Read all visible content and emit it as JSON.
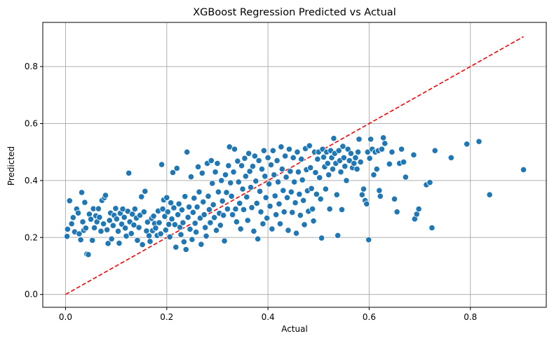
{
  "chart_data": {
    "type": "scatter",
    "title": "XGBoost Regression Predicted vs Actual",
    "xlabel": "Actual",
    "ylabel": "Predicted",
    "xlim": [
      -0.045,
      0.95
    ],
    "ylim": [
      -0.045,
      0.955
    ],
    "xticks": [
      0.0,
      0.2,
      0.4,
      0.6,
      0.8
    ],
    "yticks": [
      0.0,
      0.2,
      0.4,
      0.6,
      0.8
    ],
    "xtick_labels": [
      "0.0",
      "0.2",
      "0.4",
      "0.6",
      "0.8"
    ],
    "ytick_labels": [
      "0.0",
      "0.2",
      "0.4",
      "0.6",
      "0.8"
    ],
    "grid": true,
    "point_color": "#1f77b4",
    "point_edge_color": "#ffffff",
    "reference_line": {
      "style": "dashed",
      "color": "#ff0000",
      "from": [
        0.0,
        0.0
      ],
      "to": [
        0.905,
        0.905
      ]
    },
    "points": [
      [
        0.003,
        0.204
      ],
      [
        0.004,
        0.229
      ],
      [
        0.008,
        0.329
      ],
      [
        0.012,
        0.248
      ],
      [
        0.015,
        0.27
      ],
      [
        0.018,
        0.22
      ],
      [
        0.022,
        0.3
      ],
      [
        0.025,
        0.286
      ],
      [
        0.027,
        0.213
      ],
      [
        0.03,
        0.192
      ],
      [
        0.032,
        0.358
      ],
      [
        0.034,
        0.255
      ],
      [
        0.036,
        0.225
      ],
      [
        0.038,
        0.323
      ],
      [
        0.04,
        0.233
      ],
      [
        0.042,
        0.142
      ],
      [
        0.045,
        0.14
      ],
      [
        0.047,
        0.282
      ],
      [
        0.05,
        0.264
      ],
      [
        0.053,
        0.19
      ],
      [
        0.055,
        0.301
      ],
      [
        0.057,
        0.234
      ],
      [
        0.06,
        0.276
      ],
      [
        0.062,
        0.255
      ],
      [
        0.065,
        0.301
      ],
      [
        0.067,
        0.271
      ],
      [
        0.07,
        0.222
      ],
      [
        0.072,
        0.33
      ],
      [
        0.075,
        0.248
      ],
      [
        0.077,
        0.34
      ],
      [
        0.079,
        0.348
      ],
      [
        0.082,
        0.227
      ],
      [
        0.084,
        0.179
      ],
      [
        0.087,
        0.26
      ],
      [
        0.089,
        0.286
      ],
      [
        0.091,
        0.195
      ],
      [
        0.094,
        0.242
      ],
      [
        0.096,
        0.278
      ],
      [
        0.099,
        0.302
      ],
      [
        0.101,
        0.265
      ],
      [
        0.104,
        0.222
      ],
      [
        0.106,
        0.18
      ],
      [
        0.108,
        0.285
      ],
      [
        0.111,
        0.247
      ],
      [
        0.113,
        0.3
      ],
      [
        0.116,
        0.271
      ],
      [
        0.118,
        0.233
      ],
      [
        0.12,
        0.205
      ],
      [
        0.123,
        0.292
      ],
      [
        0.125,
        0.426
      ],
      [
        0.127,
        0.255
      ],
      [
        0.13,
        0.214
      ],
      [
        0.132,
        0.282
      ],
      [
        0.135,
        0.244
      ],
      [
        0.137,
        0.3
      ],
      [
        0.14,
        0.268
      ],
      [
        0.142,
        0.19
      ],
      [
        0.145,
        0.235
      ],
      [
        0.147,
        0.278
      ],
      [
        0.15,
        0.343
      ],
      [
        0.152,
        0.175
      ],
      [
        0.155,
        0.29
      ],
      [
        0.157,
        0.362
      ],
      [
        0.16,
        0.223
      ],
      [
        0.162,
        0.254
      ],
      [
        0.165,
        0.206
      ],
      [
        0.167,
        0.186
      ],
      [
        0.17,
        0.267
      ],
      [
        0.172,
        0.224
      ],
      [
        0.174,
        0.275
      ],
      [
        0.176,
        0.249
      ],
      [
        0.178,
        0.233
      ],
      [
        0.181,
        0.207
      ],
      [
        0.183,
        0.293
      ],
      [
        0.185,
        0.252
      ],
      [
        0.188,
        0.213
      ],
      [
        0.19,
        0.456
      ],
      [
        0.192,
        0.3
      ],
      [
        0.194,
        0.332
      ],
      [
        0.196,
        0.274
      ],
      [
        0.198,
        0.226
      ],
      [
        0.2,
        0.34
      ],
      [
        0.202,
        0.29
      ],
      [
        0.204,
        0.246
      ],
      [
        0.206,
        0.202
      ],
      [
        0.208,
        0.322
      ],
      [
        0.21,
        0.265
      ],
      [
        0.212,
        0.428
      ],
      [
        0.214,
        0.304
      ],
      [
        0.216,
        0.245
      ],
      [
        0.218,
        0.166
      ],
      [
        0.22,
        0.443
      ],
      [
        0.222,
        0.28
      ],
      [
        0.224,
        0.318
      ],
      [
        0.226,
        0.236
      ],
      [
        0.228,
        0.21
      ],
      [
        0.23,
        0.297
      ],
      [
        0.232,
        0.252
      ],
      [
        0.234,
        0.185
      ],
      [
        0.236,
        0.344
      ],
      [
        0.238,
        0.158
      ],
      [
        0.24,
        0.5
      ],
      [
        0.242,
        0.271
      ],
      [
        0.244,
        0.307
      ],
      [
        0.246,
        0.229
      ],
      [
        0.248,
        0.413
      ],
      [
        0.25,
        0.193
      ],
      [
        0.252,
        0.288
      ],
      [
        0.254,
        0.338
      ],
      [
        0.256,
        0.25
      ],
      [
        0.258,
        0.219
      ],
      [
        0.26,
        0.307
      ],
      [
        0.262,
        0.448
      ],
      [
        0.264,
        0.36
      ],
      [
        0.266,
        0.268
      ],
      [
        0.268,
        0.176
      ],
      [
        0.27,
        0.426
      ],
      [
        0.272,
        0.325
      ],
      [
        0.274,
        0.28
      ],
      [
        0.276,
        0.235
      ],
      [
        0.278,
        0.205
      ],
      [
        0.28,
        0.46
      ],
      [
        0.282,
        0.345
      ],
      [
        0.284,
        0.298
      ],
      [
        0.286,
        0.252
      ],
      [
        0.288,
        0.47
      ],
      [
        0.29,
        0.39
      ],
      [
        0.292,
        0.315
      ],
      [
        0.294,
        0.27
      ],
      [
        0.296,
        0.43
      ],
      [
        0.298,
        0.225
      ],
      [
        0.3,
        0.46
      ],
      [
        0.302,
        0.36
      ],
      [
        0.304,
        0.285
      ],
      [
        0.306,
        0.243
      ],
      [
        0.308,
        0.4
      ],
      [
        0.31,
        0.328
      ],
      [
        0.312,
        0.278
      ],
      [
        0.314,
        0.188
      ],
      [
        0.316,
        0.42
      ],
      [
        0.318,
        0.358
      ],
      [
        0.32,
        0.3
      ],
      [
        0.322,
        0.452
      ],
      [
        0.324,
        0.518
      ],
      [
        0.326,
        0.392
      ],
      [
        0.328,
        0.345
      ],
      [
        0.33,
        0.28
      ],
      [
        0.332,
        0.43
      ],
      [
        0.334,
        0.51
      ],
      [
        0.336,
        0.3
      ],
      [
        0.338,
        0.255
      ],
      [
        0.34,
        0.468
      ],
      [
        0.342,
        0.395
      ],
      [
        0.344,
        0.32
      ],
      [
        0.346,
        0.23
      ],
      [
        0.348,
        0.452
      ],
      [
        0.35,
        0.37
      ],
      [
        0.352,
        0.298
      ],
      [
        0.354,
        0.478
      ],
      [
        0.356,
        0.415
      ],
      [
        0.358,
        0.342
      ],
      [
        0.36,
        0.26
      ],
      [
        0.362,
        0.495
      ],
      [
        0.364,
        0.432
      ],
      [
        0.366,
        0.376
      ],
      [
        0.368,
        0.305
      ],
      [
        0.37,
        0.45
      ],
      [
        0.372,
        0.222
      ],
      [
        0.374,
        0.486
      ],
      [
        0.376,
        0.398
      ],
      [
        0.378,
        0.32
      ],
      [
        0.38,
        0.195
      ],
      [
        0.382,
        0.47
      ],
      [
        0.384,
        0.362
      ],
      [
        0.386,
        0.29
      ],
      [
        0.388,
        0.44
      ],
      [
        0.39,
        0.248
      ],
      [
        0.392,
        0.505
      ],
      [
        0.394,
        0.415
      ],
      [
        0.396,
        0.34
      ],
      [
        0.398,
        0.268
      ],
      [
        0.4,
        0.48
      ],
      [
        0.402,
        0.388
      ],
      [
        0.404,
        0.31
      ],
      [
        0.406,
        0.455
      ],
      [
        0.408,
        0.23
      ],
      [
        0.41,
        0.505
      ],
      [
        0.412,
        0.42
      ],
      [
        0.414,
        0.346
      ],
      [
        0.416,
        0.28
      ],
      [
        0.418,
        0.47
      ],
      [
        0.42,
        0.395
      ],
      [
        0.422,
        0.318
      ],
      [
        0.424,
        0.248
      ],
      [
        0.426,
        0.518
      ],
      [
        0.428,
        0.44
      ],
      [
        0.43,
        0.365
      ],
      [
        0.432,
        0.29
      ],
      [
        0.434,
        0.486
      ],
      [
        0.436,
        0.412
      ],
      [
        0.438,
        0.34
      ],
      [
        0.44,
        0.225
      ],
      [
        0.442,
        0.51
      ],
      [
        0.444,
        0.432
      ],
      [
        0.446,
        0.36
      ],
      [
        0.448,
        0.288
      ],
      [
        0.45,
        0.48
      ],
      [
        0.452,
        0.395
      ],
      [
        0.454,
        0.322
      ],
      [
        0.456,
        0.215
      ],
      [
        0.458,
        0.5
      ],
      [
        0.46,
        0.43
      ],
      [
        0.462,
        0.352
      ],
      [
        0.464,
        0.278
      ],
      [
        0.466,
        0.475
      ],
      [
        0.468,
        0.402
      ],
      [
        0.47,
        0.33
      ],
      [
        0.472,
        0.245
      ],
      [
        0.474,
        0.512
      ],
      [
        0.476,
        0.438
      ],
      [
        0.478,
        0.364
      ],
      [
        0.48,
        0.292
      ],
      [
        0.482,
        0.522
      ],
      [
        0.484,
        0.445
      ],
      [
        0.486,
        0.372
      ],
      [
        0.488,
        0.3
      ],
      [
        0.49,
        0.258
      ],
      [
        0.492,
        0.5
      ],
      [
        0.494,
        0.428
      ],
      [
        0.496,
        0.352
      ],
      [
        0.498,
        0.475
      ],
      [
        0.5,
        0.5
      ],
      [
        0.502,
        0.41
      ],
      [
        0.504,
        0.335
      ],
      [
        0.506,
        0.198
      ],
      [
        0.508,
        0.51
      ],
      [
        0.51,
        0.482
      ],
      [
        0.512,
        0.448
      ],
      [
        0.514,
        0.37
      ],
      [
        0.516,
        0.5
      ],
      [
        0.518,
        0.46
      ],
      [
        0.52,
        0.42
      ],
      [
        0.522,
        0.3
      ],
      [
        0.524,
        0.505
      ],
      [
        0.526,
        0.48
      ],
      [
        0.528,
        0.44
      ],
      [
        0.53,
        0.548
      ],
      [
        0.532,
        0.495
      ],
      [
        0.534,
        0.46
      ],
      [
        0.536,
        0.35
      ],
      [
        0.538,
        0.207
      ],
      [
        0.54,
        0.505
      ],
      [
        0.542,
        0.47
      ],
      [
        0.544,
        0.43
      ],
      [
        0.546,
        0.298
      ],
      [
        0.548,
        0.52
      ],
      [
        0.55,
        0.48
      ],
      [
        0.552,
        0.45
      ],
      [
        0.555,
        0.4
      ],
      [
        0.558,
        0.51
      ],
      [
        0.561,
        0.47
      ],
      [
        0.564,
        0.495
      ],
      [
        0.567,
        0.445
      ],
      [
        0.57,
        0.46
      ],
      [
        0.573,
        0.48
      ],
      [
        0.576,
        0.44
      ],
      [
        0.578,
        0.5
      ],
      [
        0.58,
        0.545
      ],
      [
        0.583,
        0.465
      ],
      [
        0.586,
        0.35
      ],
      [
        0.589,
        0.37
      ],
      [
        0.592,
        0.33
      ],
      [
        0.595,
        0.318
      ],
      [
        0.597,
        0.5
      ],
      [
        0.599,
        0.192
      ],
      [
        0.601,
        0.478
      ],
      [
        0.603,
        0.545
      ],
      [
        0.606,
        0.51
      ],
      [
        0.609,
        0.42
      ],
      [
        0.612,
        0.5
      ],
      [
        0.615,
        0.44
      ],
      [
        0.618,
        0.505
      ],
      [
        0.62,
        0.365
      ],
      [
        0.622,
        0.345
      ],
      [
        0.625,
        0.51
      ],
      [
        0.628,
        0.55
      ],
      [
        0.631,
        0.53
      ],
      [
        0.64,
        0.458
      ],
      [
        0.645,
        0.5
      ],
      [
        0.65,
        0.335
      ],
      [
        0.655,
        0.29
      ],
      [
        0.66,
        0.46
      ],
      [
        0.664,
        0.51
      ],
      [
        0.668,
        0.465
      ],
      [
        0.672,
        0.412
      ],
      [
        0.688,
        0.49
      ],
      [
        0.69,
        0.265
      ],
      [
        0.694,
        0.282
      ],
      [
        0.698,
        0.3
      ],
      [
        0.713,
        0.385
      ],
      [
        0.72,
        0.393
      ],
      [
        0.724,
        0.234
      ],
      [
        0.73,
        0.505
      ],
      [
        0.762,
        0.48
      ],
      [
        0.793,
        0.528
      ],
      [
        0.817,
        0.537
      ],
      [
        0.838,
        0.35
      ],
      [
        0.905,
        0.438
      ]
    ]
  }
}
